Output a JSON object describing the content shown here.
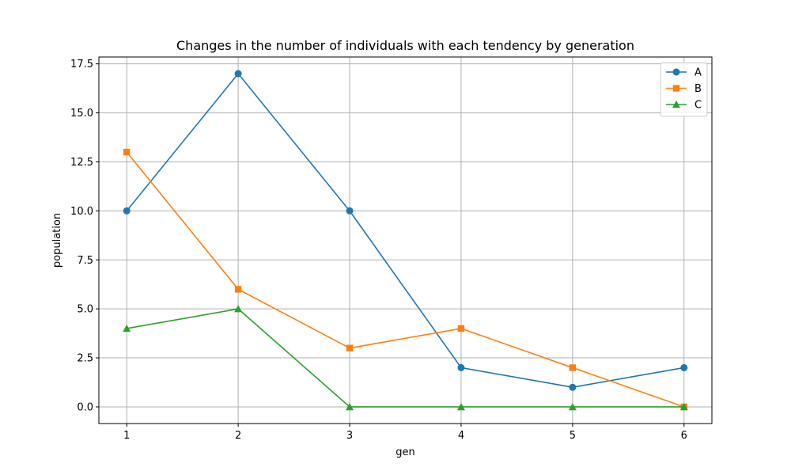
{
  "chart_data": {
    "type": "line",
    "title": "Changes in the number of individuals with each tendency by generation",
    "xlabel": "gen",
    "ylabel": "population",
    "x": [
      1,
      2,
      3,
      4,
      5,
      6
    ],
    "xlim": [
      0.75,
      6.25
    ],
    "ylim": [
      -0.85,
      17.85
    ],
    "xticks": [
      1,
      2,
      3,
      4,
      5,
      6
    ],
    "yticks": [
      0.0,
      2.5,
      5.0,
      7.5,
      10.0,
      12.5,
      15.0,
      17.5
    ],
    "ytick_labels": [
      "0.0",
      "2.5",
      "5.0",
      "7.5",
      "10.0",
      "12.5",
      "15.0",
      "17.5"
    ],
    "grid": true,
    "legend_position": "top-right",
    "series": [
      {
        "name": "A",
        "values": [
          10,
          17,
          10,
          2,
          1,
          2
        ],
        "color": "#1f77b4",
        "marker": "circle"
      },
      {
        "name": "B",
        "values": [
          13,
          6,
          3,
          4,
          2,
          0
        ],
        "color": "#ff7f0e",
        "marker": "square"
      },
      {
        "name": "C",
        "values": [
          4,
          5,
          0,
          0,
          0,
          0
        ],
        "color": "#2ca02c",
        "marker": "triangle"
      }
    ]
  }
}
